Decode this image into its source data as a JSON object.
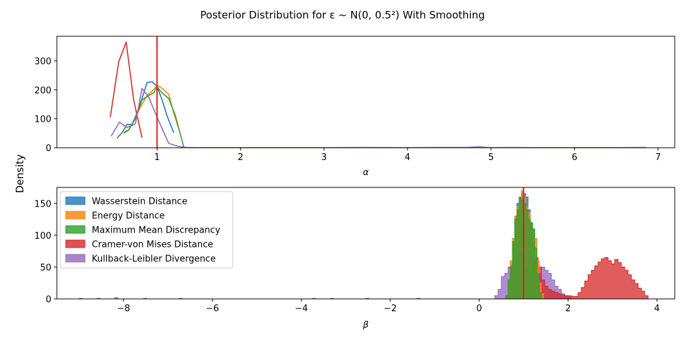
{
  "figure": {
    "title": "Posterior Distribution for ε ~ N(0, 0.5²) With Smoothing",
    "shared_ylabel": "Density"
  },
  "colors": {
    "wasserstein": "#1f77b4",
    "energy": "#ff7f0e",
    "mmd": "#2ca02c",
    "cvm": "#d62728",
    "kl": "#9467bd",
    "true_value": "#e41a1c"
  },
  "chart_data": [
    {
      "type": "line",
      "xlabel": "α",
      "ylabel": "",
      "xlim": [
        -0.2,
        7.2
      ],
      "ylim": [
        0,
        385
      ],
      "xticks": [
        1,
        2,
        3,
        4,
        5,
        6,
        7
      ],
      "yticks": [
        0,
        100,
        200,
        300
      ],
      "reference_line": 1.0,
      "series": [
        {
          "key": "wasserstein",
          "x": [
            0.52,
            0.58,
            0.64,
            0.7,
            0.76,
            0.82,
            0.88,
            0.94,
            1.0,
            1.06,
            1.12,
            1.2
          ],
          "y": [
            33,
            52,
            80,
            80,
            120,
            170,
            225,
            228,
            212,
            165,
            110,
            52
          ]
        },
        {
          "key": "energy",
          "x": [
            0.6,
            0.66,
            0.72,
            0.8,
            0.88,
            0.94,
            1.0,
            1.06,
            1.14,
            1.2,
            1.26
          ],
          "y": [
            50,
            60,
            90,
            140,
            180,
            195,
            215,
            205,
            185,
            120,
            65
          ]
        },
        {
          "key": "mmd",
          "x": [
            0.6,
            0.66,
            0.74,
            0.82,
            0.9,
            0.96,
            1.0,
            1.06,
            1.14,
            1.22,
            1.32
          ],
          "y": [
            52,
            62,
            100,
            165,
            180,
            190,
            210,
            190,
            170,
            110,
            2
          ]
        },
        {
          "key": "cvm",
          "x": [
            0.44,
            0.54,
            0.63,
            0.72,
            0.82
          ],
          "y": [
            105,
            296,
            365,
            165,
            35
          ]
        },
        {
          "key": "kl",
          "x": [
            0.45,
            0.55,
            0.64,
            0.74,
            0.82,
            0.9,
            1.0,
            1.14,
            1.25,
            1.35,
            1.5,
            2.0,
            2.5,
            3.0,
            3.45,
            4.0,
            4.3,
            4.7,
            4.86,
            5.0,
            5.25,
            5.6,
            6.0,
            6.5,
            6.86
          ],
          "y": [
            40,
            88,
            70,
            82,
            205,
            175,
            105,
            15,
            5,
            1,
            0.5,
            0.5,
            0.5,
            0.5,
            1,
            0.5,
            1,
            1,
            3,
            0.5,
            1,
            0.5,
            0.5,
            0.5,
            1
          ]
        }
      ]
    },
    {
      "type": "bar",
      "xlabel": "β",
      "ylabel": "",
      "xlim": [
        -9.5,
        4.4
      ],
      "ylim": [
        0,
        175
      ],
      "xticks": [
        -8,
        -6,
        -4,
        -2,
        0,
        2,
        4
      ],
      "yticks": [
        0,
        50,
        100,
        150
      ],
      "reference_line": 1.0,
      "legend": {
        "placement": "upper-left",
        "items": [
          {
            "key": "wasserstein",
            "label": "Wasserstein Distance"
          },
          {
            "key": "energy",
            "label": "Energy Distance"
          },
          {
            "key": "mmd",
            "label": "Maximum Mean Discrepancy"
          },
          {
            "key": "cvm",
            "label": "Cramer-von Mises Distance"
          },
          {
            "key": "kl",
            "label": "Kullback-Leibler Divergence"
          }
        ]
      },
      "series": [
        {
          "key": "kl",
          "bin_width": 0.075,
          "bins": [
            [
              -9.0,
              1
            ],
            [
              -8.6,
              1
            ],
            [
              -8.2,
              2
            ],
            [
              -7.55,
              1
            ],
            [
              -6.75,
              1
            ],
            [
              -3.75,
              1
            ],
            [
              -3.35,
              1
            ],
            [
              -2.55,
              1
            ],
            [
              -1.4,
              1
            ],
            [
              0.35,
              5
            ],
            [
              0.425,
              15
            ],
            [
              0.5,
              35
            ],
            [
              0.575,
              40
            ],
            [
              0.65,
              50
            ],
            [
              0.725,
              55
            ],
            [
              0.8,
              65
            ],
            [
              0.875,
              75
            ],
            [
              0.95,
              72
            ],
            [
              1.025,
              50
            ],
            [
              1.1,
              30
            ],
            [
              1.175,
              20
            ],
            [
              1.25,
              35
            ],
            [
              1.325,
              40
            ],
            [
              1.4,
              50
            ],
            [
              1.475,
              45
            ],
            [
              1.55,
              40
            ],
            [
              1.625,
              30
            ],
            [
              1.7,
              20
            ],
            [
              1.775,
              15
            ],
            [
              1.85,
              8
            ],
            [
              1.925,
              5
            ],
            [
              2.0,
              3
            ]
          ]
        },
        {
          "key": "cvm",
          "bin_width": 0.075,
          "bins": [
            [
              1.1,
              40
            ],
            [
              1.175,
              55
            ],
            [
              1.25,
              65
            ],
            [
              1.325,
              50
            ],
            [
              1.4,
              30
            ],
            [
              1.475,
              20
            ],
            [
              1.55,
              15
            ],
            [
              1.625,
              12
            ],
            [
              1.7,
              10
            ],
            [
              1.775,
              8
            ],
            [
              1.85,
              6
            ],
            [
              1.925,
              5
            ],
            [
              2.0,
              5
            ],
            [
              2.075,
              4
            ],
            [
              2.15,
              4
            ],
            [
              2.225,
              10
            ],
            [
              2.3,
              18
            ],
            [
              2.375,
              28
            ],
            [
              2.45,
              38
            ],
            [
              2.525,
              45
            ],
            [
              2.6,
              52
            ],
            [
              2.675,
              58
            ],
            [
              2.75,
              63
            ],
            [
              2.825,
              65
            ],
            [
              2.9,
              60
            ],
            [
              2.975,
              55
            ],
            [
              3.05,
              62
            ],
            [
              3.125,
              57
            ],
            [
              3.2,
              50
            ],
            [
              3.275,
              45
            ],
            [
              3.35,
              38
            ],
            [
              3.425,
              30
            ],
            [
              3.5,
              24
            ],
            [
              3.575,
              17
            ],
            [
              3.65,
              12
            ],
            [
              3.725,
              5
            ]
          ]
        },
        {
          "key": "wasserstein",
          "bin_width": 0.05,
          "bins": [
            [
              0.6,
              5
            ],
            [
              0.65,
              25
            ],
            [
              0.7,
              50
            ],
            [
              0.75,
              90
            ],
            [
              0.8,
              130
            ],
            [
              0.85,
              150
            ],
            [
              0.9,
              160
            ],
            [
              0.95,
              166
            ],
            [
              1.0,
              165
            ],
            [
              1.05,
              160
            ],
            [
              1.1,
              140
            ],
            [
              1.15,
              120
            ],
            [
              1.2,
              90
            ],
            [
              1.25,
              60
            ],
            [
              1.3,
              35
            ],
            [
              1.35,
              15
            ],
            [
              1.4,
              5
            ]
          ]
        },
        {
          "key": "energy",
          "bin_width": 0.05,
          "bins": [
            [
              0.6,
              5
            ],
            [
              0.65,
              30
            ],
            [
              0.7,
              60
            ],
            [
              0.75,
              95
            ],
            [
              0.8,
              130
            ],
            [
              0.85,
              145
            ],
            [
              0.9,
              158
            ],
            [
              0.95,
              170
            ],
            [
              1.0,
              162
            ],
            [
              1.05,
              145
            ],
            [
              1.1,
              135
            ],
            [
              1.15,
              120
            ],
            [
              1.2,
              110
            ],
            [
              1.25,
              95
            ],
            [
              1.3,
              60
            ],
            [
              1.35,
              25
            ],
            [
              1.4,
              8
            ]
          ]
        },
        {
          "key": "mmd",
          "bin_width": 0.05,
          "bins": [
            [
              0.6,
              5
            ],
            [
              0.65,
              30
            ],
            [
              0.7,
              50
            ],
            [
              0.75,
              90
            ],
            [
              0.8,
              125
            ],
            [
              0.85,
              140
            ],
            [
              0.9,
              158
            ],
            [
              0.95,
              155
            ],
            [
              1.0,
              150
            ],
            [
              1.05,
              140
            ],
            [
              1.1,
              125
            ],
            [
              1.15,
              120
            ],
            [
              1.2,
              110
            ],
            [
              1.25,
              80
            ],
            [
              1.3,
              40
            ],
            [
              1.35,
              10
            ]
          ]
        }
      ]
    }
  ]
}
